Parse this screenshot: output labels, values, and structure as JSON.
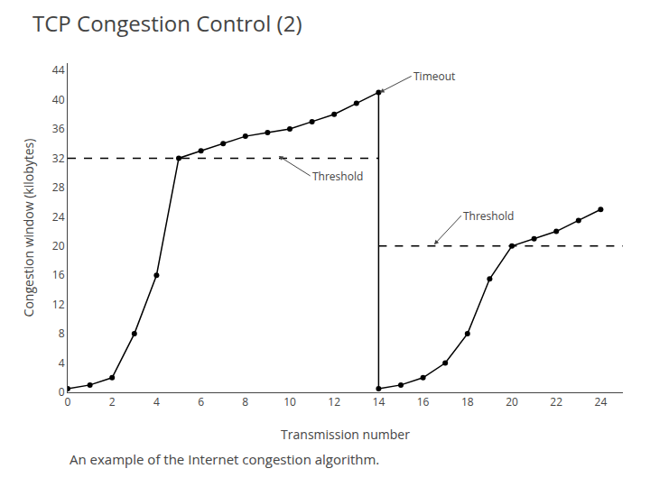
{
  "chart_data": {
    "type": "line",
    "title": "TCP Congestion Control (2)",
    "subtitle": "An example of the Internet congestion algorithm.",
    "xlabel": "Transmission number",
    "ylabel": "Congestion window (kilobytes)",
    "xlim": [
      0,
      25
    ],
    "ylim": [
      0,
      45
    ],
    "xticks": [
      0,
      2,
      4,
      6,
      8,
      10,
      12,
      14,
      16,
      18,
      20,
      22,
      24
    ],
    "yticks": [
      0,
      4,
      8,
      12,
      16,
      20,
      24,
      28,
      32,
      36,
      40,
      44
    ],
    "grid": false,
    "series": [
      {
        "color": "#000000",
        "marker": "circle",
        "line_style": "solid",
        "x": [
          0,
          1,
          2,
          3,
          4,
          5,
          6,
          7,
          8,
          9,
          10,
          11,
          12,
          13,
          14
        ],
        "values": [
          0.5,
          1,
          2,
          8,
          16,
          32,
          33,
          34,
          35,
          35.5,
          36,
          37,
          38,
          39.5,
          41
        ]
      },
      {
        "color": "#000000",
        "marker": "circle",
        "line_style": "solid",
        "x": [
          14,
          15,
          16,
          17,
          18,
          19,
          20,
          21,
          22,
          23,
          24
        ],
        "values": [
          0.5,
          1,
          2,
          4,
          8,
          15.5,
          20,
          21,
          22,
          23.5,
          25
        ]
      },
      {
        "color": "#000000",
        "line_style": "solid",
        "x": [
          14,
          14
        ],
        "values": [
          41,
          0.5
        ]
      },
      {
        "color": "#000000",
        "line_style": "dashed",
        "x": [
          0,
          14
        ],
        "values": [
          32,
          32
        ]
      },
      {
        "color": "#000000",
        "line_style": "dashed",
        "x": [
          14,
          25
        ],
        "values": [
          20,
          20
        ]
      }
    ],
    "annotations": [
      {
        "text": "Timeout",
        "x": 14.05,
        "y": 41
      },
      {
        "text": "Threshold",
        "x": 9.5,
        "y": 32.3
      },
      {
        "text": "Threshold",
        "x": 16.5,
        "y": 20.2
      }
    ]
  }
}
